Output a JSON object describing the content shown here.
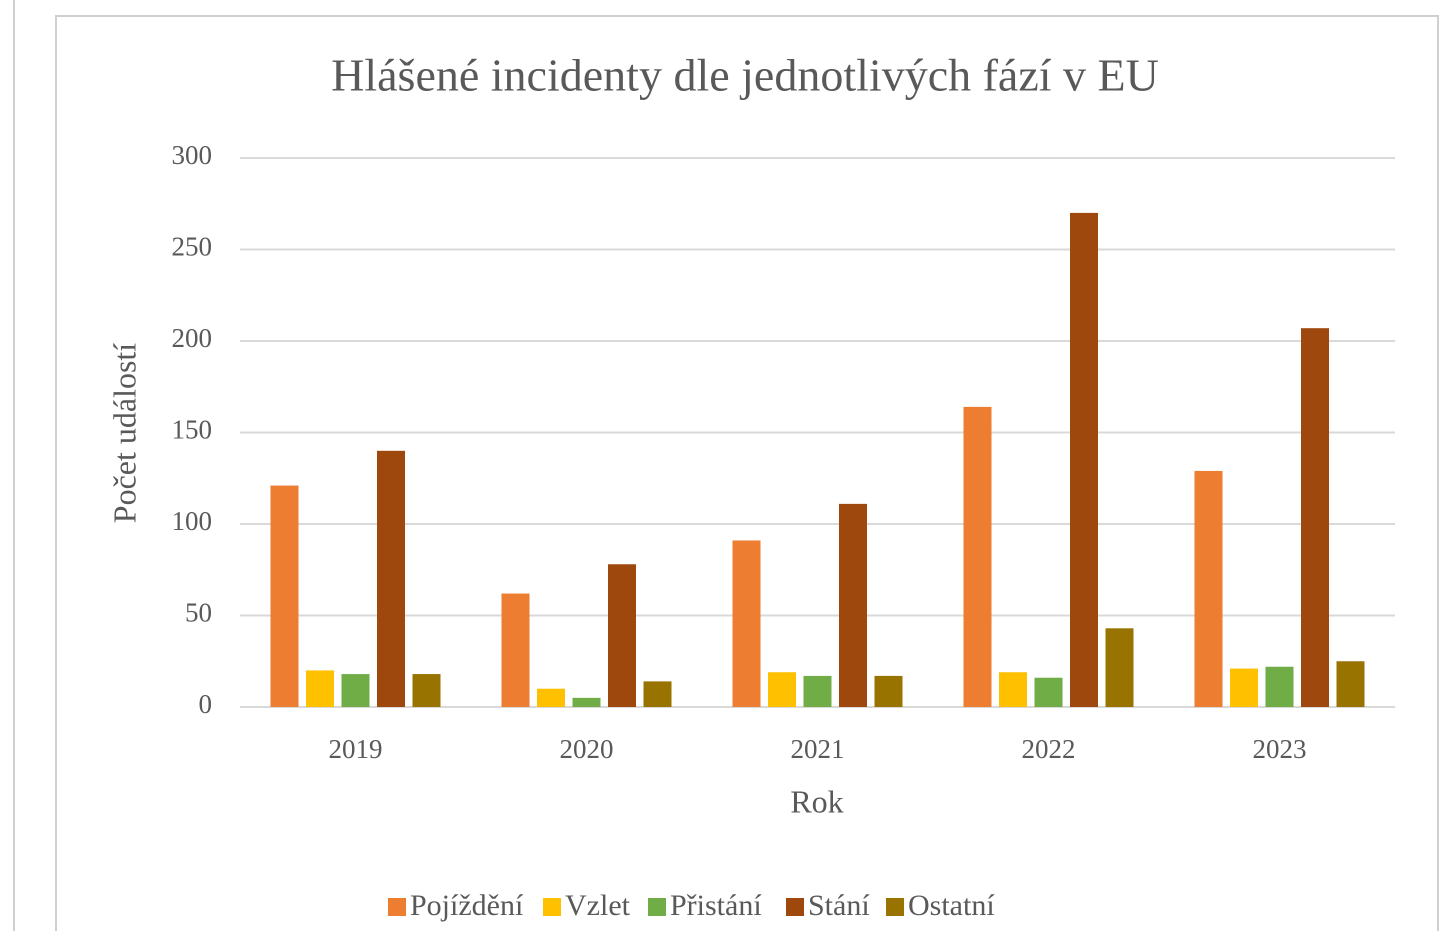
{
  "chart_data": {
    "type": "bar",
    "title": "Hlášené incidenty  dle jednotlivých  fází v EU",
    "x_label": "Rok",
    "y_label": "Počet událostí",
    "categories": [
      "2019",
      "2020",
      "2021",
      "2022",
      "2023"
    ],
    "series": [
      {
        "name": "Pojíždění",
        "color": "#ED7D31",
        "values": [
          121,
          62,
          91,
          164,
          129
        ]
      },
      {
        "name": "Vzlet",
        "color": "#FFC000",
        "values": [
          20,
          10,
          19,
          19,
          21
        ]
      },
      {
        "name": "Přistání",
        "color": "#70AD47",
        "values": [
          18,
          5,
          17,
          16,
          22
        ]
      },
      {
        "name": "Stání",
        "color": "#9E480E",
        "values": [
          140,
          78,
          111,
          270,
          207
        ]
      },
      {
        "name": "Ostatní",
        "color": "#997300",
        "values": [
          18,
          14,
          17,
          43,
          25
        ]
      }
    ],
    "ylim": [
      0,
      300
    ],
    "yticks": [
      0,
      50,
      100,
      150,
      200,
      250,
      300
    ],
    "grid": true,
    "legend": "bottom"
  }
}
